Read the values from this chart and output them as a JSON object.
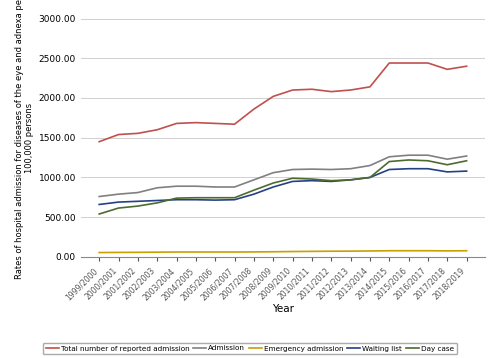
{
  "years": [
    "1999/2000",
    "2000/2001",
    "2001/2002",
    "2002/2003",
    "2003/2004",
    "2004/2005",
    "2005/2006",
    "2006/2007",
    "2007/2008",
    "2008/2009",
    "2009/2010",
    "2010/2011",
    "2011/2012",
    "2012/2013",
    "2013/2014",
    "2014/2015",
    "2015/2016",
    "2016/2017",
    "2017/2018",
    "2018/2019"
  ],
  "total": [
    1450,
    1540,
    1555,
    1600,
    1680,
    1690,
    1680,
    1670,
    1860,
    2020,
    2100,
    2110,
    2080,
    2100,
    2140,
    2440,
    2440,
    2440,
    2360,
    2400
  ],
  "admission": [
    760,
    790,
    810,
    870,
    890,
    890,
    880,
    880,
    970,
    1060,
    1100,
    1105,
    1100,
    1110,
    1150,
    1260,
    1280,
    1280,
    1230,
    1270
  ],
  "emergency": [
    55,
    57,
    58,
    60,
    62,
    62,
    62,
    62,
    63,
    65,
    68,
    70,
    72,
    73,
    75,
    78,
    78,
    78,
    76,
    78
  ],
  "waiting_list": [
    660,
    690,
    700,
    710,
    720,
    720,
    715,
    720,
    790,
    880,
    950,
    960,
    950,
    970,
    1000,
    1100,
    1110,
    1110,
    1070,
    1080
  ],
  "day_case": [
    540,
    615,
    640,
    680,
    740,
    745,
    745,
    745,
    840,
    930,
    990,
    980,
    960,
    970,
    1000,
    1200,
    1220,
    1210,
    1160,
    1210
  ],
  "total_color": "#c0504d",
  "admission_color": "#808080",
  "emergency_color": "#c8a000",
  "waiting_list_color": "#244185",
  "day_case_color": "#4e6b2e",
  "ylabel_line1": "Rates of hospital admission for diseases of the eye and adnexa per",
  "ylabel_line2": "100,000 persons",
  "xlabel": "Year",
  "ylim": [
    0,
    3000
  ],
  "yticks": [
    0.0,
    500.0,
    1000.0,
    1500.0,
    2000.0,
    2500.0,
    3000.0
  ],
  "legend_labels": [
    "Total number of reported admission",
    "Admission",
    "Emergency admission",
    "Waiting list",
    "Day case"
  ],
  "background_color": "#ffffff",
  "grid_color": "#d0d0d0"
}
